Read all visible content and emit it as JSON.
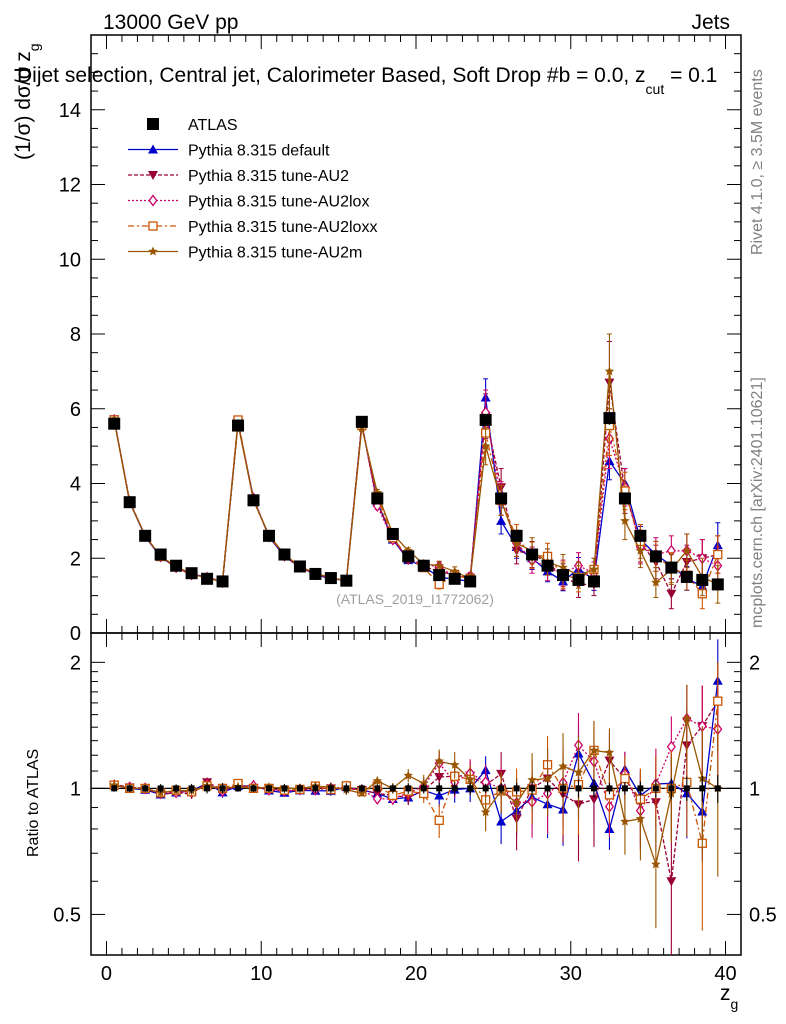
{
  "header": {
    "energy_label": "13000 GeV pp",
    "process_label": "Jets",
    "plot_title": "Dijet selection, Central jet, Calorimeter Based, Soft Drop #b = 0.0, z",
    "title_subscript": "cut",
    "title_suffix": " = 0.1"
  },
  "side_labels": {
    "rivet": "Rivet 4.1.0, ≥ 3.5M events",
    "mcplots": "mcplots.cern.ch [arXiv:2401.10621]"
  },
  "watermark": "(ATLAS_2019_I1772062)",
  "axes": {
    "ylabel_main": "(1/σ) dσ/d z",
    "ylabel_main_sub": "g",
    "ylabel_ratio": "Ratio to ATLAS",
    "xlabel": "z",
    "xlabel_sub": "g"
  },
  "chart_data": {
    "type": "line",
    "title": "Dijet selection, Central jet, Calorimeter Based, Soft Drop #b = 0.0, z_cut = 0.1",
    "xlabel": "z_g",
    "ylabel": "(1/σ) dσ/d z_g",
    "xlim": [
      -1,
      41
    ],
    "ylim": [
      0,
      16
    ],
    "xticks": [
      0,
      10,
      20,
      30,
      40
    ],
    "yticks": [
      0,
      2,
      4,
      6,
      8,
      10,
      12,
      14
    ],
    "ratio": {
      "ylabel": "Ratio to ATLAS",
      "ylim": [
        0.4,
        2.35
      ],
      "yticks": [
        0.5,
        1,
        2
      ],
      "reference_line": 1
    },
    "x": [
      0.5,
      1.5,
      2.5,
      3.5,
      4.5,
      5.5,
      6.5,
      7.5,
      8.5,
      9.5,
      10.5,
      11.5,
      12.5,
      13.5,
      14.5,
      15.5,
      16.5,
      17.5,
      18.5,
      19.5,
      20.5,
      21.5,
      22.5,
      23.5,
      24.5,
      25.5,
      26.5,
      27.5,
      28.5,
      29.5,
      30.5,
      31.5,
      32.5,
      33.5,
      34.5,
      35.5,
      36.5,
      37.5,
      38.5,
      39.5
    ],
    "series": [
      {
        "name": "ATLAS",
        "color": "#000000",
        "marker": "square",
        "dash": "none",
        "values": [
          5.6,
          3.5,
          2.6,
          2.1,
          1.8,
          1.6,
          1.45,
          1.38,
          5.55,
          3.55,
          2.6,
          2.1,
          1.78,
          1.58,
          1.47,
          1.4,
          5.65,
          3.6,
          2.65,
          2.05,
          1.8,
          1.55,
          1.45,
          1.38,
          5.7,
          3.6,
          2.6,
          2.1,
          1.8,
          1.55,
          1.42,
          1.38,
          5.75,
          3.6,
          2.6,
          2.05,
          1.75,
          1.5,
          1.42,
          1.3
        ],
        "errors": [
          0.1,
          0.07,
          0.05,
          0.05,
          0.04,
          0.04,
          0.04,
          0.04,
          0.1,
          0.07,
          0.05,
          0.05,
          0.04,
          0.04,
          0.04,
          0.04,
          0.12,
          0.08,
          0.06,
          0.06,
          0.05,
          0.05,
          0.05,
          0.05,
          0.14,
          0.1,
          0.08,
          0.08,
          0.07,
          0.07,
          0.07,
          0.07,
          0.18,
          0.12,
          0.1,
          0.1,
          0.1,
          0.1,
          0.1,
          0.1
        ]
      },
      {
        "name": "Pythia 8.315 default",
        "color": "#0000cc",
        "marker": "triangle-up",
        "dash": "none",
        "values": [
          5.7,
          3.5,
          2.58,
          2.03,
          1.76,
          1.58,
          1.49,
          1.35,
          5.62,
          3.6,
          2.57,
          2.05,
          1.76,
          1.56,
          1.45,
          1.41,
          5.6,
          3.5,
          2.5,
          1.95,
          1.78,
          1.49,
          1.44,
          1.38,
          6.3,
          3.0,
          2.3,
          2.0,
          1.65,
          1.38,
          1.72,
          1.42,
          4.6,
          4.0,
          2.5,
          2.1,
          1.8,
          1.46,
          1.25,
          2.35
        ],
        "errors": [
          0.06,
          0.05,
          0.04,
          0.04,
          0.04,
          0.04,
          0.04,
          0.04,
          0.06,
          0.05,
          0.04,
          0.04,
          0.04,
          0.04,
          0.04,
          0.04,
          0.1,
          0.08,
          0.07,
          0.07,
          0.08,
          0.09,
          0.1,
          0.1,
          0.5,
          0.35,
          0.3,
          0.3,
          0.28,
          0.25,
          0.3,
          0.28,
          0.5,
          0.4,
          0.35,
          0.35,
          0.35,
          0.32,
          0.3,
          0.6
        ]
      },
      {
        "name": "Pythia 8.315 tune-AU2",
        "color": "#990033",
        "marker": "triangle-down",
        "dash": "4,2",
        "values": [
          5.72,
          3.52,
          2.6,
          2.03,
          1.76,
          1.55,
          1.5,
          1.37,
          5.65,
          3.55,
          2.6,
          2.07,
          1.76,
          1.58,
          1.47,
          1.4,
          5.6,
          3.5,
          2.55,
          1.95,
          1.78,
          1.65,
          1.55,
          1.48,
          5.8,
          3.9,
          2.2,
          2.1,
          1.9,
          1.5,
          1.3,
          1.3,
          6.7,
          3.8,
          2.4,
          1.9,
          1.05,
          1.9,
          2.0,
          2.1
        ],
        "errors": [
          0.06,
          0.05,
          0.04,
          0.04,
          0.04,
          0.04,
          0.04,
          0.04,
          0.06,
          0.05,
          0.04,
          0.04,
          0.04,
          0.04,
          0.04,
          0.04,
          0.1,
          0.09,
          0.08,
          0.08,
          0.09,
          0.12,
          0.12,
          0.12,
          0.6,
          0.5,
          0.35,
          0.35,
          0.35,
          0.35,
          0.35,
          0.3,
          1.1,
          0.6,
          0.5,
          0.45,
          0.4,
          0.45,
          0.5,
          0.5
        ]
      },
      {
        "name": "Pythia 8.315 tune-AU2lox",
        "color": "#cc0066",
        "marker": "diamond",
        "dash": "2,2",
        "values": [
          5.7,
          3.52,
          2.6,
          2.05,
          1.76,
          1.57,
          1.48,
          1.36,
          5.62,
          3.6,
          2.58,
          2.07,
          1.77,
          1.57,
          1.47,
          1.41,
          5.6,
          3.4,
          2.5,
          2.0,
          1.82,
          1.78,
          1.5,
          1.5,
          5.9,
          3.6,
          2.4,
          1.95,
          1.75,
          1.6,
          1.8,
          1.6,
          5.2,
          3.9,
          2.3,
          2.1,
          2.2,
          2.2,
          2.0,
          1.8
        ],
        "errors": [
          0.06,
          0.05,
          0.04,
          0.04,
          0.04,
          0.04,
          0.04,
          0.04,
          0.06,
          0.05,
          0.04,
          0.04,
          0.04,
          0.04,
          0.04,
          0.04,
          0.1,
          0.09,
          0.08,
          0.08,
          0.09,
          0.12,
          0.12,
          0.12,
          0.6,
          0.45,
          0.35,
          0.35,
          0.35,
          0.35,
          0.35,
          0.3,
          0.8,
          0.5,
          0.45,
          0.45,
          0.4,
          0.45,
          0.5,
          0.5
        ]
      },
      {
        "name": "Pythia 8.315 tune-AU2loxx",
        "color": "#cc5500",
        "marker": "open-square",
        "dash": "6,3,2,3",
        "values": [
          5.7,
          3.5,
          2.6,
          2.05,
          1.78,
          1.57,
          1.47,
          1.38,
          5.7,
          3.55,
          2.6,
          2.08,
          1.77,
          1.6,
          1.46,
          1.42,
          5.55,
          3.65,
          2.55,
          2.02,
          1.75,
          1.3,
          1.55,
          1.45,
          5.35,
          3.55,
          2.55,
          2.08,
          2.05,
          1.55,
          1.45,
          1.7,
          5.55,
          3.8,
          2.45,
          2.05,
          1.75,
          1.55,
          1.05,
          2.1
        ],
        "errors": [
          0.06,
          0.05,
          0.04,
          0.04,
          0.04,
          0.04,
          0.04,
          0.04,
          0.06,
          0.05,
          0.04,
          0.04,
          0.04,
          0.04,
          0.04,
          0.04,
          0.1,
          0.09,
          0.08,
          0.08,
          0.09,
          0.12,
          0.12,
          0.12,
          0.5,
          0.4,
          0.35,
          0.35,
          0.35,
          0.35,
          0.35,
          0.3,
          0.8,
          0.5,
          0.45,
          0.4,
          0.4,
          0.4,
          0.4,
          0.5
        ]
      },
      {
        "name": "Pythia 8.315 tune-AU2m",
        "color": "#995500",
        "marker": "star",
        "dash": "none",
        "values": [
          5.7,
          3.5,
          2.6,
          2.05,
          1.78,
          1.58,
          1.47,
          1.38,
          5.6,
          3.55,
          2.62,
          2.1,
          1.78,
          1.6,
          1.48,
          1.39,
          5.5,
          3.75,
          2.65,
          2.2,
          1.85,
          1.8,
          1.65,
          1.45,
          5.0,
          3.55,
          2.4,
          2.2,
          1.9,
          1.75,
          1.55,
          1.7,
          7.0,
          3.0,
          2.2,
          1.35,
          1.7,
          2.2,
          1.5,
          1.3
        ],
        "errors": [
          0.06,
          0.05,
          0.04,
          0.04,
          0.04,
          0.04,
          0.04,
          0.04,
          0.06,
          0.05,
          0.04,
          0.04,
          0.04,
          0.04,
          0.04,
          0.04,
          0.1,
          0.09,
          0.08,
          0.08,
          0.09,
          0.12,
          0.12,
          0.12,
          0.5,
          0.4,
          0.35,
          0.35,
          0.35,
          0.35,
          0.35,
          0.3,
          1.0,
          0.5,
          0.45,
          0.4,
          0.4,
          0.45,
          0.5,
          0.5
        ]
      }
    ]
  }
}
